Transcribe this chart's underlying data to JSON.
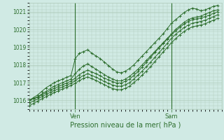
{
  "xlabel": "Pression niveau de la mer( hPa )",
  "bg_color": "#d0eae4",
  "grid_color": "#b0ccbb",
  "line_color": "#2d6e2d",
  "ylim": [
    1015.5,
    1021.5
  ],
  "xlim": [
    0,
    46
  ],
  "yticks": [
    1016,
    1017,
    1018,
    1019,
    1020,
    1021
  ],
  "xtick_positions": [
    11,
    34
  ],
  "xtick_labels": [
    "Ven",
    "Sam"
  ],
  "vlines": [
    11,
    34
  ],
  "series": [
    [
      1016.0,
      1016.15,
      1016.3,
      1016.5,
      1016.7,
      1016.85,
      1017.0,
      1017.1,
      1017.2,
      1017.3,
      1017.4,
      1018.35,
      1018.65,
      1018.75,
      1018.85,
      1018.65,
      1018.5,
      1018.35,
      1018.15,
      1017.95,
      1017.75,
      1017.6,
      1017.55,
      1017.65,
      1017.8,
      1018.0,
      1018.25,
      1018.5,
      1018.75,
      1019.0,
      1019.25,
      1019.5,
      1019.75,
      1020.05,
      1020.35,
      1020.55,
      1020.75,
      1020.95,
      1021.1,
      1021.2,
      1021.15,
      1021.05,
      1021.1,
      1021.2,
      1021.3,
      1021.35
    ],
    [
      1016.0,
      1016.1,
      1016.2,
      1016.35,
      1016.5,
      1016.65,
      1016.8,
      1016.9,
      1017.0,
      1017.1,
      1017.2,
      1017.5,
      1017.75,
      1017.95,
      1018.05,
      1017.9,
      1017.75,
      1017.6,
      1017.45,
      1017.3,
      1017.2,
      1017.1,
      1017.1,
      1017.2,
      1017.35,
      1017.55,
      1017.75,
      1018.0,
      1018.25,
      1018.5,
      1018.75,
      1019.0,
      1019.25,
      1019.5,
      1019.75,
      1020.0,
      1020.2,
      1020.4,
      1020.55,
      1020.65,
      1020.7,
      1020.75,
      1020.85,
      1020.95,
      1021.05,
      1021.1
    ],
    [
      1016.0,
      1016.08,
      1016.18,
      1016.3,
      1016.42,
      1016.55,
      1016.68,
      1016.78,
      1016.88,
      1016.98,
      1017.08,
      1017.25,
      1017.45,
      1017.6,
      1017.7,
      1017.6,
      1017.5,
      1017.38,
      1017.25,
      1017.15,
      1017.05,
      1016.98,
      1016.98,
      1017.08,
      1017.2,
      1017.4,
      1017.62,
      1017.88,
      1018.15,
      1018.42,
      1018.7,
      1018.95,
      1019.2,
      1019.45,
      1019.7,
      1019.92,
      1020.12,
      1020.3,
      1020.45,
      1020.55,
      1020.6,
      1020.65,
      1020.72,
      1020.8,
      1020.9,
      1021.0
    ],
    [
      1015.85,
      1015.96,
      1016.08,
      1016.2,
      1016.32,
      1016.44,
      1016.56,
      1016.66,
      1016.76,
      1016.86,
      1016.96,
      1017.1,
      1017.28,
      1017.4,
      1017.5,
      1017.4,
      1017.3,
      1017.18,
      1017.06,
      1016.96,
      1016.86,
      1016.8,
      1016.8,
      1016.88,
      1017.0,
      1017.2,
      1017.42,
      1017.65,
      1017.9,
      1018.15,
      1018.42,
      1018.68,
      1018.95,
      1019.22,
      1019.5,
      1019.72,
      1019.92,
      1020.1,
      1020.25,
      1020.35,
      1020.4,
      1020.45,
      1020.52,
      1020.62,
      1020.72,
      1020.82
    ],
    [
      1015.7,
      1015.82,
      1015.95,
      1016.08,
      1016.2,
      1016.32,
      1016.44,
      1016.54,
      1016.64,
      1016.74,
      1016.84,
      1016.96,
      1017.12,
      1017.24,
      1017.32,
      1017.22,
      1017.12,
      1017.0,
      1016.88,
      1016.76,
      1016.66,
      1016.6,
      1016.6,
      1016.68,
      1016.8,
      1017.0,
      1017.2,
      1017.42,
      1017.65,
      1017.9,
      1018.18,
      1018.45,
      1018.72,
      1018.98,
      1019.25,
      1019.48,
      1019.7,
      1019.88,
      1020.04,
      1020.14,
      1020.2,
      1020.25,
      1020.32,
      1020.42,
      1020.52,
      1020.62
    ]
  ]
}
